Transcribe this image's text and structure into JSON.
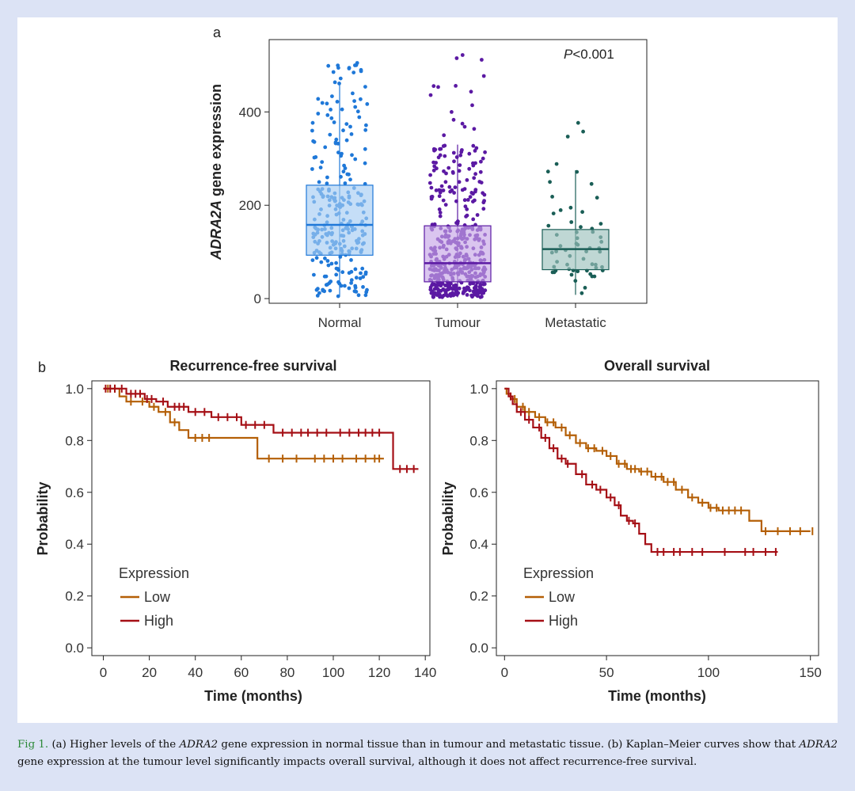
{
  "caption": {
    "fig_label": "Fig 1.",
    "parts": [
      "(a) Higher levels of the ",
      "ADRA2",
      " gene expression in normal tissue than in tumour and metastatic tissue. (b) Kaplan–Meier curves show that ",
      "ADRA2",
      " gene expression at the tumour level significantly impacts overall survival, although it does not affect recurrence-free survival."
    ]
  },
  "colors": {
    "normal": "#1f78d8",
    "normal_fill": "#a6cdf2",
    "tumour": "#5b19a3",
    "tumour_fill": "#c6a6e6",
    "metastatic": "#1a5e56",
    "metastatic_fill": "#9cc1bd",
    "low": "#b45f06",
    "high": "#a50f15"
  },
  "chart_data": [
    {
      "type": "box",
      "panel_label": "a",
      "ylabel_italic": "ADRA2A",
      "ylabel_rest": " gene expression",
      "annotation_italic": "P",
      "annotation_rest": "<0.001",
      "categories": [
        "Normal",
        "Tumour",
        "Metastatic"
      ],
      "ylim": [
        -10,
        555
      ],
      "yticks": [
        0,
        200,
        400
      ],
      "boxes": [
        {
          "name": "Normal",
          "q1": 93,
          "median": 158,
          "q3": 243,
          "whisker_low": 5,
          "whisker_high": 462,
          "max": 510,
          "n_points": 260
        },
        {
          "name": "Tumour",
          "q1": 36,
          "median": 76,
          "q3": 156,
          "whisker_low": 3,
          "whisker_high": 330,
          "max": 530,
          "n_points": 470
        },
        {
          "name": "Metastatic",
          "q1": 62,
          "median": 106,
          "q3": 148,
          "whisker_low": 8,
          "whisker_high": 275,
          "max": 398,
          "n_points": 60
        }
      ]
    },
    {
      "type": "line",
      "subtype": "kaplan-meier",
      "panel_label": "b",
      "title": "Recurrence-free survival",
      "xlabel": "Time (months)",
      "ylabel": "Probability",
      "xlim": [
        -5,
        142
      ],
      "ylim": [
        -0.03,
        1.03
      ],
      "xticks": [
        0,
        20,
        40,
        60,
        80,
        100,
        120,
        140
      ],
      "yticks": [
        "0.0",
        "0.2",
        "0.4",
        "0.6",
        "0.8",
        "1.0"
      ],
      "legend_title": "Expression",
      "series": [
        {
          "name": "Low",
          "color_key": "low",
          "x": [
            0,
            7,
            10,
            20,
            24,
            29,
            33,
            37,
            67,
            122
          ],
          "y": [
            1.0,
            0.97,
            0.95,
            0.93,
            0.91,
            0.87,
            0.84,
            0.81,
            0.73,
            0.73
          ],
          "censored": [
            2,
            5,
            12,
            17,
            22,
            27,
            31,
            40,
            43,
            46,
            72,
            78,
            84,
            92,
            96,
            100,
            104,
            110,
            114,
            118,
            120
          ]
        },
        {
          "name": "High",
          "color_key": "high",
          "x": [
            0,
            10,
            18,
            23,
            28,
            37,
            47,
            60,
            74,
            126,
            137
          ],
          "y": [
            1.0,
            0.98,
            0.96,
            0.95,
            0.93,
            0.91,
            0.89,
            0.86,
            0.83,
            0.69,
            0.69
          ],
          "censored": [
            1,
            3,
            5,
            8,
            12,
            14,
            16,
            19,
            21,
            26,
            31,
            33,
            35,
            40,
            44,
            50,
            54,
            58,
            62,
            66,
            70,
            78,
            82,
            86,
            89,
            93,
            97,
            103,
            107,
            111,
            114,
            117,
            120,
            129,
            132,
            135
          ]
        }
      ]
    },
    {
      "type": "line",
      "subtype": "kaplan-meier",
      "title": "Overall survival",
      "xlabel": "Time (months)",
      "ylabel": "Probability",
      "xlim": [
        -4,
        154
      ],
      "ylim": [
        -0.03,
        1.03
      ],
      "xticks": [
        0,
        50,
        100,
        150
      ],
      "yticks": [
        "0.0",
        "0.2",
        "0.4",
        "0.6",
        "0.8",
        "1.0"
      ],
      "legend_title": "Expression",
      "series": [
        {
          "name": "Low",
          "color_key": "low",
          "x": [
            0,
            1,
            3,
            6,
            10,
            15,
            20,
            25,
            30,
            35,
            40,
            45,
            50,
            55,
            60,
            66,
            72,
            78,
            84,
            90,
            95,
            100,
            105,
            112,
            118,
            120,
            126,
            150
          ],
          "y": [
            1.0,
            0.98,
            0.96,
            0.93,
            0.91,
            0.89,
            0.87,
            0.85,
            0.82,
            0.79,
            0.77,
            0.76,
            0.74,
            0.71,
            0.69,
            0.68,
            0.66,
            0.64,
            0.61,
            0.58,
            0.56,
            0.54,
            0.53,
            0.53,
            0.53,
            0.49,
            0.45,
            0.45
          ],
          "censored": [
            5,
            9,
            12,
            17,
            21,
            24,
            28,
            32,
            37,
            41,
            44,
            48,
            52,
            56,
            59,
            62,
            64,
            67,
            70,
            74,
            77,
            80,
            83,
            87,
            92,
            97,
            101,
            104,
            107,
            110,
            113,
            116,
            128,
            134,
            140,
            145,
            151
          ]
        },
        {
          "name": "High",
          "color_key": "high",
          "x": [
            0,
            2,
            4,
            6,
            10,
            14,
            18,
            22,
            26,
            30,
            35,
            40,
            45,
            50,
            54,
            57,
            60,
            63,
            66,
            69,
            72,
            134
          ],
          "y": [
            1.0,
            0.97,
            0.94,
            0.91,
            0.88,
            0.85,
            0.81,
            0.77,
            0.73,
            0.71,
            0.67,
            0.63,
            0.61,
            0.58,
            0.55,
            0.51,
            0.49,
            0.48,
            0.44,
            0.4,
            0.37,
            0.37
          ],
          "censored": [
            3,
            8,
            12,
            17,
            20,
            24,
            28,
            31,
            38,
            43,
            47,
            52,
            56,
            61,
            64,
            75,
            78,
            83,
            86,
            92,
            97,
            108,
            118,
            122,
            128,
            133
          ]
        }
      ]
    }
  ]
}
